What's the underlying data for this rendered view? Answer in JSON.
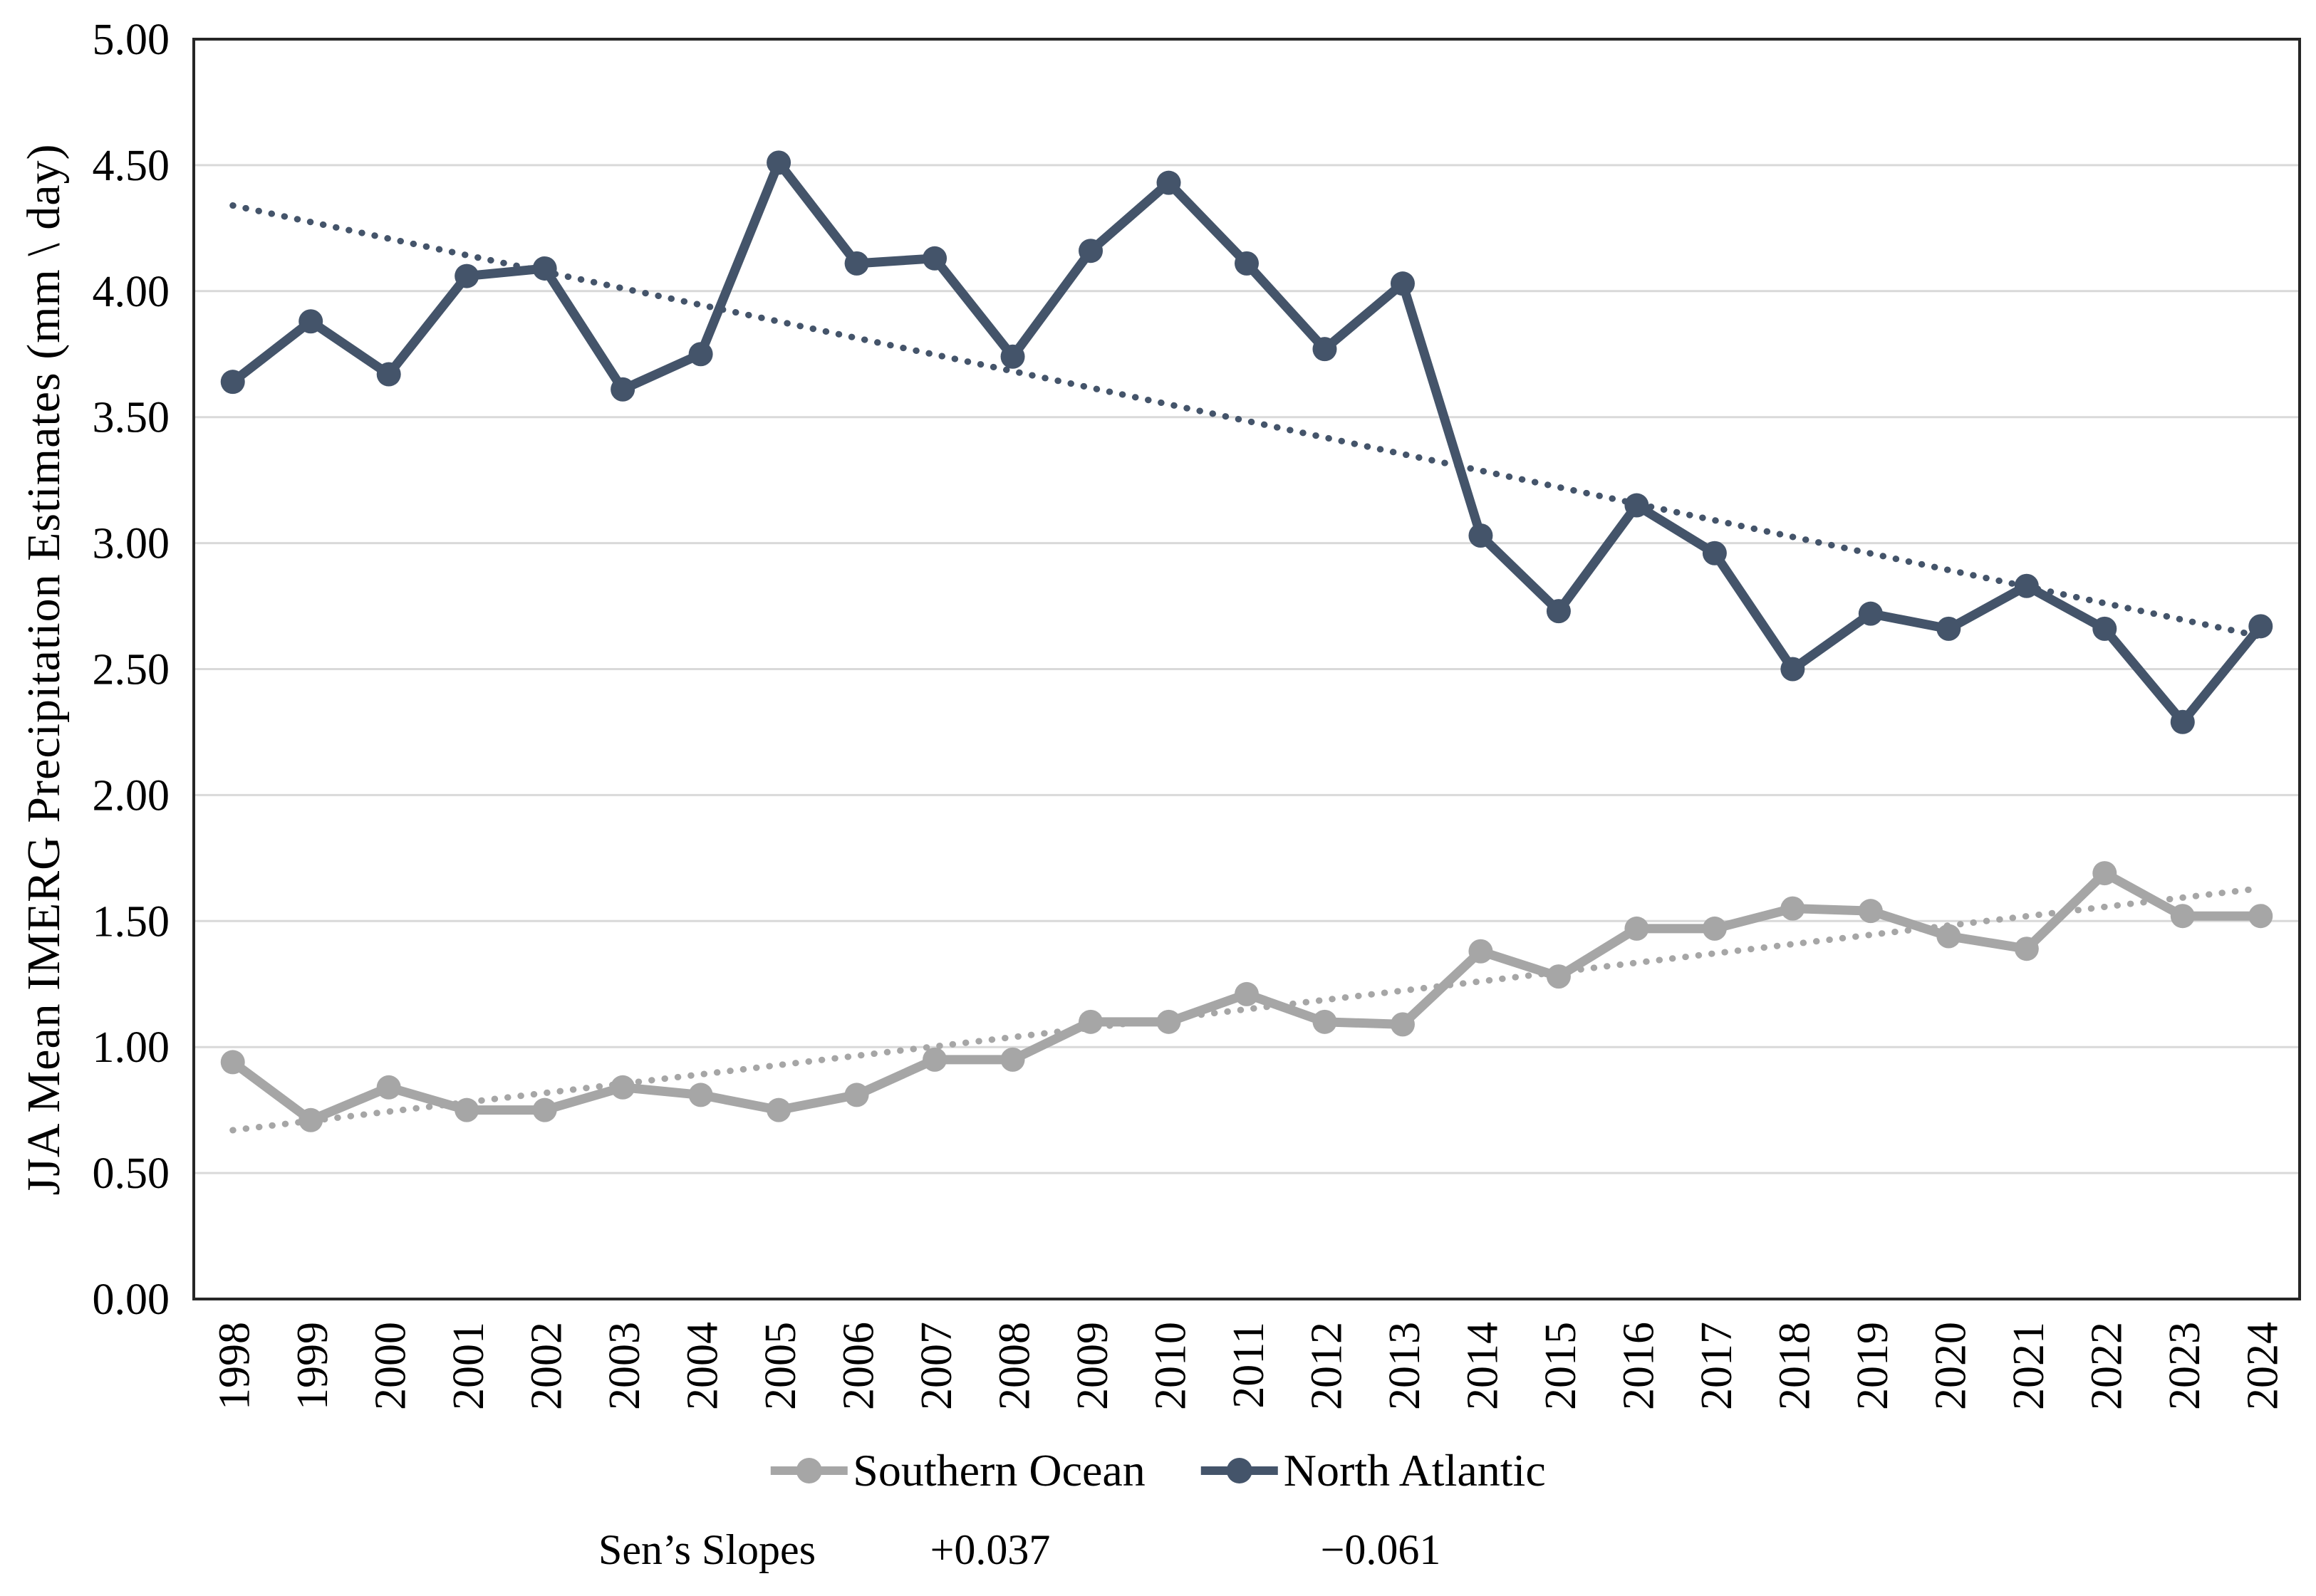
{
  "chart_data": {
    "type": "line",
    "title": "",
    "xlabel": "",
    "ylabel": "JJA Mean IMERG Precipitation Estimates (mm \\ day)",
    "x": [
      "1998",
      "1999",
      "2000",
      "2001",
      "2002",
      "2003",
      "2004",
      "2005",
      "2006",
      "2007",
      "2008",
      "2009",
      "2010",
      "2011",
      "2012",
      "2013",
      "2014",
      "2015",
      "2016",
      "2017",
      "2018",
      "2019",
      "2020",
      "2021",
      "2022",
      "2023",
      "2024"
    ],
    "ylim": [
      0,
      5
    ],
    "ytick_step": 0.5,
    "y_tick_labels": [
      "0.00",
      "0.50",
      "1.00",
      "1.50",
      "2.00",
      "2.50",
      "3.00",
      "3.50",
      "4.00",
      "4.50",
      "5.00"
    ],
    "grid": true,
    "legend_position": "bottom",
    "series": [
      {
        "name": "Southern Ocean",
        "color": "#A6A6A6",
        "marker": "circle",
        "values": [
          0.94,
          0.71,
          0.84,
          0.75,
          0.75,
          0.84,
          0.81,
          0.75,
          0.81,
          0.95,
          0.95,
          1.1,
          1.1,
          1.21,
          1.1,
          1.09,
          1.38,
          1.28,
          1.47,
          1.47,
          1.55,
          1.54,
          1.44,
          1.39,
          1.69,
          1.52,
          1.52
        ],
        "trendline": {
          "style": "dotted",
          "start_value": 0.67,
          "end_value": 1.63
        }
      },
      {
        "name": "North Atlantic",
        "color": "#44546A",
        "marker": "circle",
        "values": [
          3.64,
          3.88,
          3.67,
          4.06,
          4.09,
          3.61,
          3.75,
          4.51,
          4.11,
          4.13,
          3.74,
          4.16,
          4.43,
          4.11,
          3.77,
          4.03,
          3.03,
          2.73,
          3.15,
          2.96,
          2.5,
          2.72,
          2.66,
          2.83,
          2.66,
          2.29,
          2.67
        ],
        "trendline": {
          "style": "dotted",
          "start_value": 4.34,
          "end_value": 2.63
        }
      }
    ],
    "annotations": {
      "sens_label": "Sen’s Slopes",
      "southern_ocean_sens_slope": "+0.037",
      "north_atlantic_sens_slope": "−0.061"
    },
    "colors": {
      "gridline": "#D9D9D9",
      "plot_border": "#262626",
      "text": "#000000"
    }
  }
}
